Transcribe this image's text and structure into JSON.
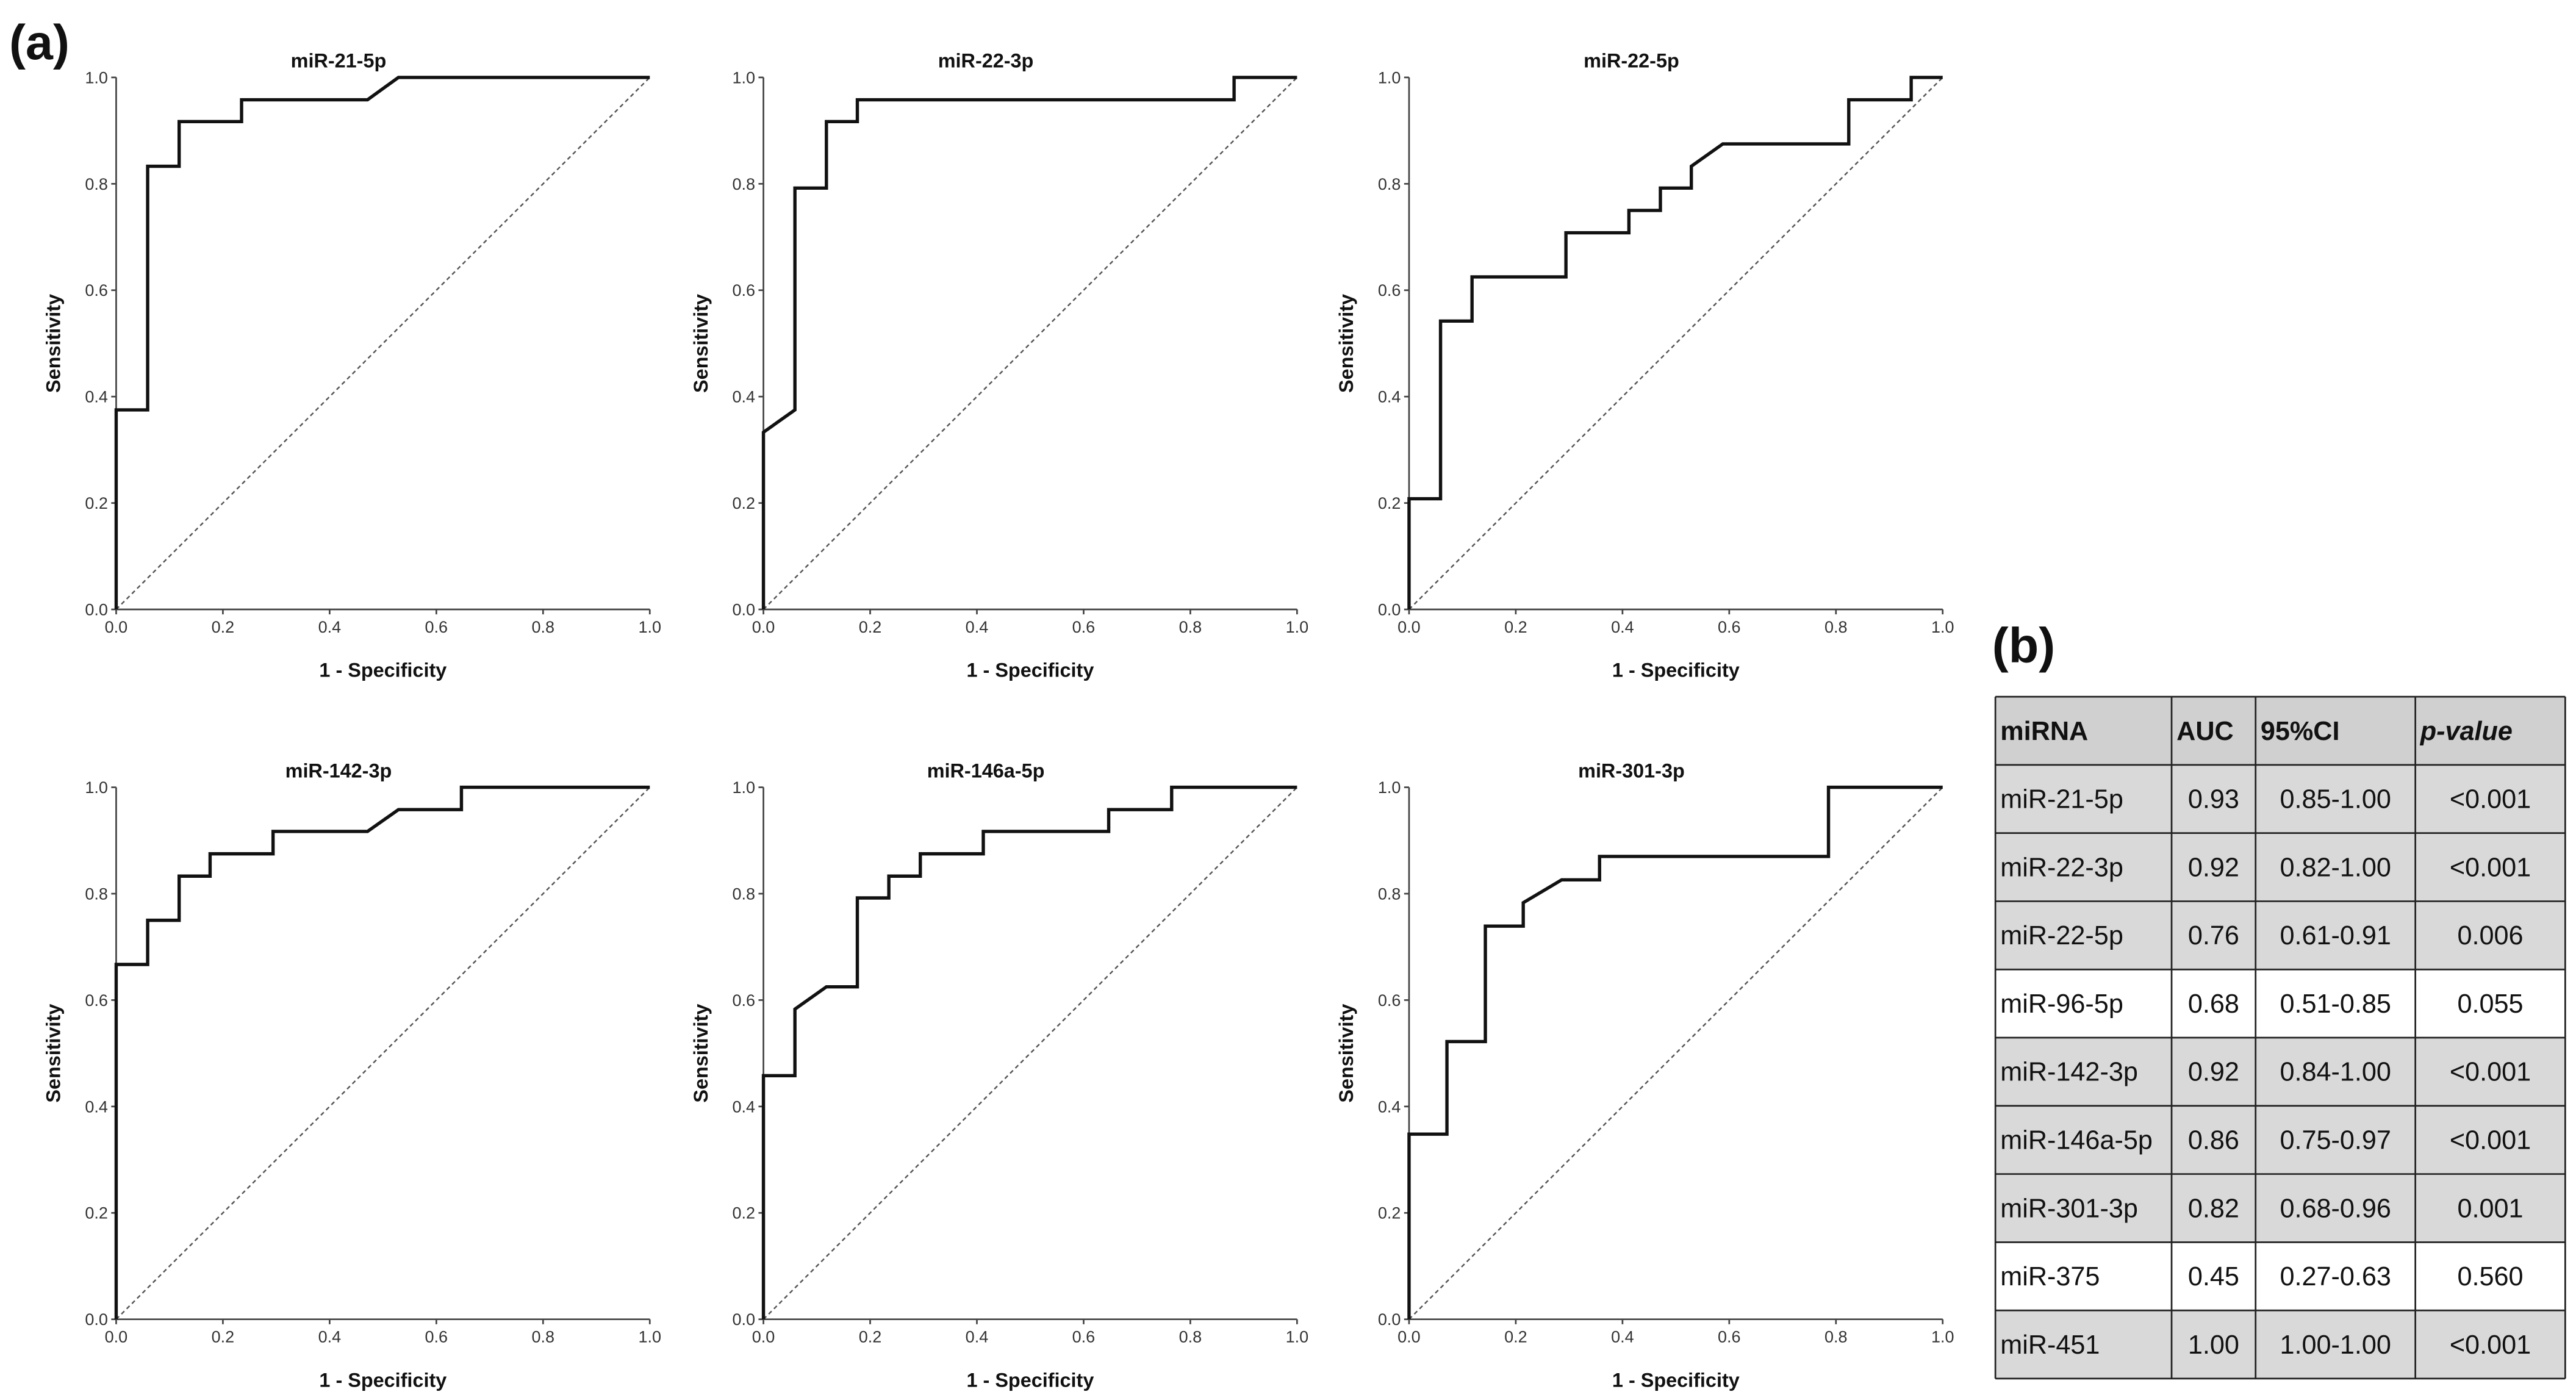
{
  "panel_a": "(a)",
  "panel_b": "(b)",
  "chart_data": [
    {
      "type": "line",
      "title": "miR-21-5p",
      "xlabel": "1 - Specificity",
      "ylabel": "Sensitivity",
      "color": "#111111",
      "grid": false,
      "x": [
        0,
        0,
        0.059,
        0.059,
        0.118,
        0.118,
        0.235,
        0.235,
        0.471,
        0.529,
        1
      ],
      "values": [
        0,
        0.375,
        0.375,
        0.833,
        0.833,
        0.917,
        0.917,
        0.958,
        0.958,
        1,
        1
      ],
      "xlim": [
        0,
        1
      ],
      "ylim": [
        0,
        1
      ],
      "xticks": [
        {
          "value": 0,
          "label": "0.0"
        },
        0.2,
        0.4,
        0.6,
        0.8,
        {
          "value": 1,
          "label": "1.0"
        }
      ],
      "yticks": [
        {
          "value": 0,
          "label": "0.0"
        },
        0.2,
        0.4,
        0.6,
        0.8,
        {
          "value": 1,
          "label": "1.0"
        }
      ]
    },
    {
      "type": "line",
      "title": "miR-22-3p",
      "xlabel": "1 - Specificity",
      "ylabel": "Sensitivity",
      "color": "#111111",
      "grid": false,
      "x": [
        0,
        0,
        0.059,
        0.059,
        0.118,
        0.118,
        0.176,
        0.176,
        0.882,
        0.882,
        1
      ],
      "values": [
        0,
        0.333,
        0.375,
        0.792,
        0.792,
        0.917,
        0.917,
        0.958,
        0.958,
        1,
        1
      ],
      "xlim": [
        0,
        1
      ],
      "ylim": [
        0,
        1
      ],
      "xticks": [
        {
          "value": 0,
          "label": "0.0"
        },
        0.2,
        0.4,
        0.6,
        0.8,
        {
          "value": 1,
          "label": "1.0"
        }
      ],
      "yticks": [
        {
          "value": 0,
          "label": "0.0"
        },
        0.2,
        0.4,
        0.6,
        0.8,
        {
          "value": 1,
          "label": "1.0"
        }
      ]
    },
    {
      "type": "line",
      "title": "miR-22-5p",
      "xlabel": "1 - Specificity",
      "ylabel": "Sensitivity",
      "color": "#111111",
      "grid": false,
      "x": [
        0,
        0,
        0.059,
        0.059,
        0.118,
        0.118,
        0.294,
        0.294,
        0.412,
        0.412,
        0.471,
        0.471,
        0.529,
        0.529,
        0.588,
        0.824,
        0.824,
        0.941,
        0.941,
        1
      ],
      "values": [
        0,
        0.208,
        0.208,
        0.542,
        0.542,
        0.625,
        0.625,
        0.708,
        0.708,
        0.75,
        0.75,
        0.792,
        0.792,
        0.833,
        0.875,
        0.875,
        0.958,
        0.958,
        1,
        1
      ],
      "xlim": [
        0,
        1
      ],
      "ylim": [
        0,
        1
      ],
      "xticks": [
        {
          "value": 0,
          "label": "0.0"
        },
        0.2,
        0.4,
        0.6,
        0.8,
        {
          "value": 1,
          "label": "1.0"
        }
      ],
      "yticks": [
        {
          "value": 0,
          "label": "0.0"
        },
        0.2,
        0.4,
        0.6,
        0.8,
        {
          "value": 1,
          "label": "1.0"
        }
      ]
    },
    {
      "type": "line",
      "title": "miR-142-3p",
      "xlabel": "1 - Specificity",
      "ylabel": "Sensitivity",
      "color": "#111111",
      "grid": false,
      "x": [
        0,
        0,
        0.059,
        0.059,
        0.118,
        0.118,
        0.176,
        0.176,
        0.294,
        0.294,
        0.471,
        0.529,
        0.647,
        0.647,
        1
      ],
      "values": [
        0,
        0.667,
        0.667,
        0.75,
        0.75,
        0.833,
        0.833,
        0.875,
        0.875,
        0.917,
        0.917,
        0.958,
        0.958,
        1,
        1
      ],
      "xlim": [
        0,
        1
      ],
      "ylim": [
        0,
        1
      ],
      "xticks": [
        {
          "value": 0,
          "label": "0.0"
        },
        0.2,
        0.4,
        0.6,
        0.8,
        {
          "value": 1,
          "label": "1.0"
        }
      ],
      "yticks": [
        {
          "value": 0,
          "label": "0.0"
        },
        0.2,
        0.4,
        0.6,
        0.8,
        {
          "value": 1,
          "label": "1.0"
        }
      ]
    },
    {
      "type": "line",
      "title": "miR-146a-5p",
      "xlabel": "1 - Specificity",
      "ylabel": "Sensitivity",
      "color": "#111111",
      "grid": false,
      "x": [
        0,
        0,
        0.059,
        0.059,
        0.118,
        0.176,
        0.176,
        0.235,
        0.235,
        0.294,
        0.294,
        0.412,
        0.412,
        0.647,
        0.647,
        0.765,
        0.765,
        1
      ],
      "values": [
        0,
        0.458,
        0.458,
        0.583,
        0.625,
        0.625,
        0.792,
        0.792,
        0.833,
        0.833,
        0.875,
        0.875,
        0.917,
        0.917,
        0.958,
        0.958,
        1,
        1
      ],
      "xlim": [
        0,
        1
      ],
      "ylim": [
        0,
        1
      ],
      "xticks": [
        {
          "value": 0,
          "label": "0.0"
        },
        0.2,
        0.4,
        0.6,
        0.8,
        {
          "value": 1,
          "label": "1.0"
        }
      ],
      "yticks": [
        {
          "value": 0,
          "label": "0.0"
        },
        0.2,
        0.4,
        0.6,
        0.8,
        {
          "value": 1,
          "label": "1.0"
        }
      ]
    },
    {
      "type": "line",
      "title": "miR-301-3p",
      "xlabel": "1 - Specificity",
      "ylabel": "Sensitivity",
      "color": "#111111",
      "grid": false,
      "x": [
        0,
        0,
        0.071,
        0.071,
        0.143,
        0.143,
        0.214,
        0.214,
        0.286,
        0.357,
        0.357,
        0.786,
        0.786,
        1
      ],
      "values": [
        0,
        0.348,
        0.348,
        0.522,
        0.522,
        0.739,
        0.739,
        0.783,
        0.826,
        0.826,
        0.87,
        0.87,
        1,
        1
      ],
      "xlim": [
        0,
        1
      ],
      "ylim": [
        0,
        1
      ],
      "xticks": [
        {
          "value": 0,
          "label": "0.0"
        },
        0.2,
        0.4,
        0.6,
        0.8,
        {
          "value": 1,
          "label": "1.0"
        }
      ],
      "yticks": [
        {
          "value": 0,
          "label": "0.0"
        },
        0.2,
        0.4,
        0.6,
        0.8,
        {
          "value": 1,
          "label": "1.0"
        }
      ]
    }
  ],
  "table": {
    "header": [
      "miRNA",
      "AUC",
      "95%CI",
      "p-value"
    ],
    "rows": [
      [
        "miR-21-5p",
        "0.93",
        "0.85-1.00",
        "<0.001"
      ],
      [
        "miR-22-3p",
        "0.92",
        "0.82-1.00",
        "<0.001"
      ],
      [
        "miR-22-5p",
        "0.76",
        "0.61-0.91",
        "0.006"
      ],
      [
        "miR-96-5p",
        "0.68",
        "0.51-0.85",
        "0.055"
      ],
      [
        "miR-142-3p",
        "0.92",
        "0.84-1.00",
        "<0.001"
      ],
      [
        "miR-146a-5p",
        "0.86",
        "0.75-0.97",
        "<0.001"
      ],
      [
        "miR-301-3p",
        "0.82",
        "0.68-0.96",
        "0.001"
      ],
      [
        "miR-375",
        "0.45",
        "0.27-0.63",
        "0.560"
      ],
      [
        "miR-451",
        "1.00",
        "1.00-1.00",
        "<0.001"
      ]
    ]
  }
}
